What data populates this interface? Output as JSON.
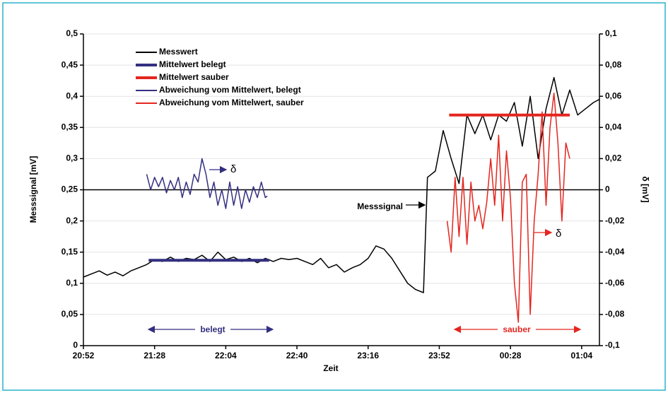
{
  "chart_data": {
    "type": "line",
    "xlabel": "Zeit",
    "ylabel": "Messsignal [mV]",
    "y2label": "δ [mV]",
    "xlim": [
      1252,
      1513
    ],
    "xticks": [
      {
        "value": 1252,
        "label": "20:52"
      },
      {
        "value": 1288,
        "label": "21:28"
      },
      {
        "value": 1324,
        "label": "22:04"
      },
      {
        "value": 1360,
        "label": "22:40"
      },
      {
        "value": 1396,
        "label": "23:16"
      },
      {
        "value": 1432,
        "label": "23:52"
      },
      {
        "value": 1468,
        "label": "00:28"
      },
      {
        "value": 1504,
        "label": "01:04"
      }
    ],
    "ylim": [
      0,
      0.5
    ],
    "yticks": [
      0,
      {
        "value": 0.05,
        "label": "0,05"
      },
      {
        "value": 0.1,
        "label": "0,1"
      },
      {
        "value": 0.15,
        "label": "0,15"
      },
      {
        "value": 0.2,
        "label": "0,2"
      },
      {
        "value": 0.25,
        "label": "0,25"
      },
      {
        "value": 0.3,
        "label": "0,3"
      },
      {
        "value": 0.35,
        "label": "0,35"
      },
      {
        "value": 0.4,
        "label": "0,4"
      },
      {
        "value": 0.45,
        "label": "0,45"
      },
      {
        "value": 0.5,
        "label": "0,5"
      }
    ],
    "y2lim": [
      -0.1,
      0.1
    ],
    "y2ticks": [
      {
        "value": -0.1,
        "label": "-0,1"
      },
      {
        "value": -0.08,
        "label": "-0,08"
      },
      {
        "value": -0.06,
        "label": "-0,06"
      },
      {
        "value": -0.04,
        "label": "-0,04"
      },
      {
        "value": -0.02,
        "label": "-0,02"
      },
      0,
      {
        "value": 0.02,
        "label": "0,02"
      },
      {
        "value": 0.04,
        "label": "0,04"
      },
      {
        "value": 0.06,
        "label": "0,06"
      },
      {
        "value": 0.08,
        "label": "0,08"
      },
      {
        "value": 0.1,
        "label": "0,1"
      }
    ],
    "grid": true,
    "legend": "upper left",
    "series": [
      {
        "name": "Messwert",
        "color": "#000000",
        "width": 1.5,
        "x": [
          1252,
          1256,
          1260,
          1264,
          1268,
          1272,
          1276,
          1280,
          1284,
          1288,
          1292,
          1296,
          1300,
          1304,
          1308,
          1312,
          1316,
          1320,
          1324,
          1328,
          1332,
          1336,
          1340,
          1344,
          1348,
          1352,
          1356,
          1360,
          1364,
          1368,
          1372,
          1376,
          1380,
          1384,
          1388,
          1392,
          1396,
          1400,
          1404,
          1408,
          1412,
          1416,
          1420,
          1424,
          1426,
          1430,
          1434,
          1438,
          1442,
          1446,
          1450,
          1454,
          1458,
          1462,
          1466,
          1470,
          1474,
          1478,
          1482,
          1486,
          1490,
          1494,
          1498,
          1502,
          1506,
          1510,
          1513
        ],
        "values": [
          0.11,
          0.115,
          0.12,
          0.113,
          0.118,
          0.112,
          0.12,
          0.125,
          0.13,
          0.138,
          0.135,
          0.142,
          0.135,
          0.14,
          0.138,
          0.145,
          0.135,
          0.15,
          0.138,
          0.142,
          0.135,
          0.14,
          0.133,
          0.14,
          0.135,
          0.14,
          0.138,
          0.14,
          0.135,
          0.13,
          0.14,
          0.125,
          0.13,
          0.118,
          0.125,
          0.13,
          0.14,
          0.16,
          0.155,
          0.14,
          0.12,
          0.1,
          0.09,
          0.085,
          0.27,
          0.28,
          0.345,
          0.3,
          0.26,
          0.37,
          0.34,
          0.37,
          0.33,
          0.37,
          0.36,
          0.39,
          0.32,
          0.4,
          0.3,
          0.38,
          0.43,
          0.37,
          0.41,
          0.37,
          0.38,
          0.39,
          0.395
        ]
      },
      {
        "name": "Mittelwert belegt",
        "color": "#332f80",
        "width": 4,
        "x": [
          1285,
          1346
        ],
        "values": [
          0.137,
          0.137
        ]
      },
      {
        "name": "Mittelwert sauber",
        "color": "#e3261f",
        "width": 4,
        "x": [
          1437,
          1498
        ],
        "values": [
          0.37,
          0.37
        ]
      },
      {
        "name": "Abweichung vom Mittelwert, belegt",
        "color": "#332f80",
        "width": 1.5,
        "axis": "y2",
        "x": [
          1284,
          1286,
          1288,
          1290,
          1292,
          1294,
          1296,
          1298,
          1300,
          1302,
          1304,
          1306,
          1308,
          1310,
          1312,
          1314,
          1316,
          1318,
          1320,
          1322,
          1324,
          1326,
          1328,
          1330,
          1332,
          1334,
          1336,
          1338,
          1340,
          1342,
          1344,
          1345
        ],
        "values": [
          0.01,
          0.0,
          0.008,
          0.002,
          0.008,
          -0.002,
          0.006,
          0.0,
          0.008,
          -0.005,
          0.005,
          -0.003,
          0.01,
          0.005,
          0.02,
          0.01,
          -0.005,
          0.005,
          -0.01,
          0.0,
          -0.012,
          0.005,
          -0.01,
          0.002,
          -0.012,
          0.0,
          -0.008,
          0.002,
          -0.005,
          0.005,
          -0.005,
          -0.004
        ]
      },
      {
        "name": "Abweichung vom Mittelwert, sauber",
        "color": "#e3261f",
        "width": 1.5,
        "axis": "y2",
        "x": [
          1436,
          1438,
          1440,
          1442,
          1444,
          1446,
          1448,
          1450,
          1452,
          1454,
          1456,
          1458,
          1460,
          1462,
          1464,
          1466,
          1468,
          1470,
          1472,
          1474,
          1476,
          1478,
          1480,
          1482,
          1484,
          1486,
          1488,
          1490,
          1492,
          1494,
          1496,
          1498
        ],
        "values": [
          -0.02,
          -0.04,
          0.008,
          -0.03,
          0.008,
          -0.035,
          0.005,
          -0.02,
          -0.01,
          -0.025,
          -0.008,
          0.02,
          -0.01,
          0.035,
          -0.02,
          0.025,
          -0.005,
          -0.06,
          -0.085,
          0.005,
          0.01,
          -0.08,
          -0.02,
          0.01,
          0.05,
          -0.01,
          0.04,
          0.062,
          0.03,
          -0.02,
          0.03,
          0.02
        ]
      }
    ],
    "annotations": [
      "δ",
      "Messsignal",
      "δ",
      "belegt",
      "sauber"
    ]
  }
}
